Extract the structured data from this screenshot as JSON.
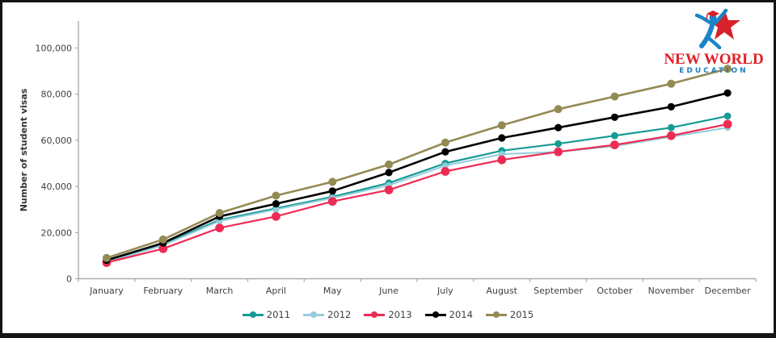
{
  "logo": {
    "line1": "NEW WORLD",
    "line2": "EDUCATION",
    "line1_color": "#e01f26",
    "line2_color": "#1d7fc0",
    "icon_blue": "#1a85c8",
    "icon_red": "#d7212b"
  },
  "chart_data": {
    "type": "line",
    "title": "",
    "xlabel": "",
    "ylabel": "Number of student visas",
    "categories": [
      "January",
      "February",
      "March",
      "April",
      "May",
      "June",
      "July",
      "August",
      "September",
      "October",
      "November",
      "December"
    ],
    "y_ticks": [
      {
        "value": 0,
        "label": "0"
      },
      {
        "value": 20000,
        "label": "20,000"
      },
      {
        "value": 40000,
        "label": "40,000"
      },
      {
        "value": 60000,
        "label": "60,000"
      },
      {
        "value": 80000,
        "label": "80,000"
      },
      {
        "value": 100000,
        "label": "100,000"
      }
    ],
    "ylim": [
      0,
      112000
    ],
    "grid": false,
    "legend_position": "bottom",
    "series": [
      {
        "name": "2011",
        "color": "#169a94",
        "values": [
          7500,
          15000,
          25500,
          30500,
          35500,
          41500,
          50000,
          55500,
          58500,
          62000,
          65500,
          70500
        ]
      },
      {
        "name": "2012",
        "color": "#93cdda",
        "values": [
          7200,
          14500,
          25000,
          30000,
          35000,
          40500,
          49000,
          54000,
          55000,
          57500,
          61500,
          65500
        ]
      },
      {
        "name": "2013",
        "color": "#ee2b55",
        "values": [
          7000,
          13000,
          22000,
          27000,
          33500,
          38500,
          46500,
          51500,
          55000,
          58000,
          62000,
          67000
        ]
      },
      {
        "name": "2014",
        "color": "#000000",
        "values": [
          8000,
          15500,
          27000,
          32500,
          38000,
          46000,
          55000,
          61000,
          65500,
          70000,
          74500,
          80500
        ]
      },
      {
        "name": "2015",
        "color": "#948a54",
        "values": [
          9000,
          17000,
          28500,
          36000,
          42000,
          49500,
          59000,
          66500,
          73500,
          79000,
          84500,
          91000
        ]
      }
    ]
  }
}
